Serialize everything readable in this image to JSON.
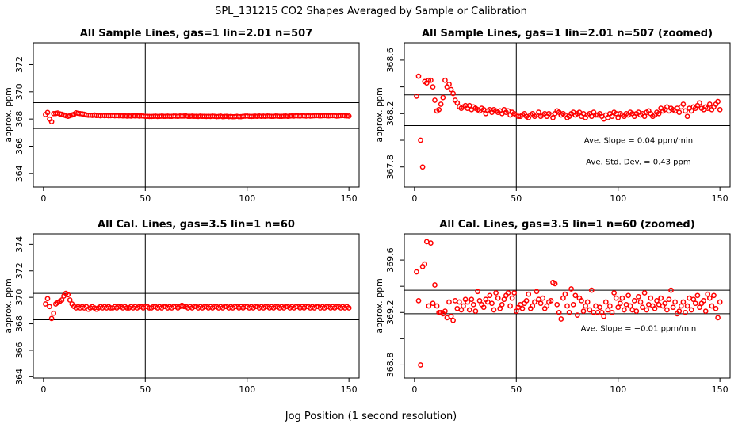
{
  "figure": {
    "title": "SPL_131215  CO2 Shapes Averaged by Sample or Calibration",
    "xlabel": "Jog Position (1 second resolution)"
  },
  "colors": {
    "points": "#ff0000",
    "lines": "#000000",
    "background": "#ffffff"
  },
  "chart_data": [
    {
      "id": "p1",
      "type": "scatter",
      "title": "All Sample Lines, gas=1 lin=2.01 n=507",
      "ylabel": "approx. ppm",
      "xlim": [
        -5,
        155
      ],
      "ylim": [
        363,
        373.6
      ],
      "xticks": [
        0,
        50,
        100,
        150
      ],
      "yticks": [
        364,
        366,
        368,
        370,
        372
      ],
      "hlines": [
        369.2,
        367.3
      ],
      "vlines": [
        50
      ],
      "grid": false,
      "annotations": [],
      "x": [
        1,
        2,
        3,
        4,
        5,
        6,
        7,
        8,
        9,
        10,
        11,
        12,
        13,
        14,
        15,
        16,
        17,
        18,
        19,
        20,
        21,
        22,
        23,
        24,
        25,
        26,
        27,
        28,
        29,
        30,
        31,
        32,
        33,
        34,
        35,
        36,
        37,
        38,
        39,
        40,
        41,
        42,
        43,
        44,
        45,
        46,
        47,
        48,
        49,
        50,
        51,
        52,
        53,
        54,
        55,
        56,
        57,
        58,
        59,
        60,
        61,
        62,
        63,
        64,
        65,
        66,
        67,
        68,
        69,
        70,
        71,
        72,
        73,
        74,
        75,
        76,
        77,
        78,
        79,
        80,
        81,
        82,
        83,
        84,
        85,
        86,
        87,
        88,
        89,
        90,
        91,
        92,
        93,
        94,
        95,
        96,
        97,
        98,
        99,
        100,
        101,
        102,
        103,
        104,
        105,
        106,
        107,
        108,
        109,
        110,
        111,
        112,
        113,
        114,
        115,
        116,
        117,
        118,
        119,
        120,
        121,
        122,
        123,
        124,
        125,
        126,
        127,
        128,
        129,
        130,
        131,
        132,
        133,
        134,
        135,
        136,
        137,
        138,
        139,
        140,
        141,
        142,
        143,
        144,
        145,
        146,
        147,
        148,
        149,
        150
      ],
      "y": [
        368.33,
        368.48,
        368.0,
        367.8,
        368.4,
        368.41,
        368.44,
        368.38,
        368.35,
        368.3,
        368.25,
        368.2,
        368.25,
        368.3,
        368.35,
        368.45,
        368.42,
        368.4,
        368.38,
        368.35,
        368.3,
        368.28,
        368.28,
        368.27,
        368.3,
        368.26,
        368.27,
        368.24,
        368.27,
        368.25,
        368.26,
        368.24,
        368.25,
        368.26,
        368.24,
        368.25,
        368.24,
        368.25,
        368.23,
        368.24,
        368.22,
        368.23,
        368.22,
        368.24,
        368.23,
        368.24,
        368.22,
        368.23,
        368.22,
        368.2,
        368.2,
        368.19,
        368.19,
        368.2,
        368.21,
        368.19,
        368.2,
        368.21,
        368.2,
        368.2,
        368.21,
        368.2,
        368.2,
        368.22,
        368.21,
        368.2,
        368.22,
        368.21,
        368.22,
        368.23,
        368.2,
        368.2,
        368.21,
        368.2,
        368.2,
        368.19,
        368.21,
        368.2,
        368.2,
        368.19,
        368.2,
        368.19,
        368.21,
        368.2,
        368.18,
        368.19,
        368.21,
        368.18,
        368.19,
        368.2,
        368.18,
        368.19,
        368.17,
        368.18,
        368.2,
        368.18,
        368.18,
        368.2,
        368.21,
        368.22,
        368.2,
        368.19,
        368.2,
        368.21,
        368.2,
        368.22,
        368.2,
        368.21,
        368.2,
        368.22,
        368.21,
        368.2,
        368.2,
        368.22,
        368.21,
        368.2,
        368.2,
        368.21,
        368.22,
        368.2,
        368.22,
        368.23,
        368.22,
        368.24,
        368.23,
        368.22,
        368.24,
        368.23,
        368.22,
        368.24,
        368.22,
        368.23,
        368.24,
        368.25,
        368.24,
        368.23,
        368.24,
        368.25,
        368.24,
        368.23,
        368.24,
        368.25,
        368.24,
        368.22,
        368.23,
        368.25,
        368.26,
        368.24,
        368.23,
        368.22
      ]
    },
    {
      "id": "p2",
      "type": "scatter",
      "title": "All Sample Lines, gas=1 lin=2.01 n=507 (zoomed)",
      "ylabel": "approx. ppm",
      "xlim": [
        -5,
        155
      ],
      "ylim": [
        367.65,
        368.73
      ],
      "xticks": [
        0,
        50,
        100,
        150
      ],
      "yticks": [
        367.8,
        368.0,
        368.2,
        368.4,
        368.6
      ],
      "yticklabels": [
        "367.8",
        "",
        "368.2",
        "",
        "368.6"
      ],
      "hlines": [
        368.34,
        368.11
      ],
      "vlines": [
        50
      ],
      "grid": false,
      "annotations": [
        {
          "text": "Ave. Slope =  0.04  ppm/min",
          "x": 110,
          "y": 367.98
        },
        {
          "text": "Ave. Std. Dev. =  0.43  ppm",
          "x": 110,
          "y": 367.82
        }
      ],
      "x": [
        1,
        2,
        3,
        4,
        5,
        6,
        7,
        8,
        9,
        10,
        11,
        12,
        13,
        14,
        15,
        16,
        17,
        18,
        19,
        20,
        21,
        22,
        23,
        24,
        25,
        26,
        27,
        28,
        29,
        30,
        31,
        32,
        33,
        34,
        35,
        36,
        37,
        38,
        39,
        40,
        41,
        42,
        43,
        44,
        45,
        46,
        47,
        48,
        49,
        50,
        51,
        52,
        53,
        54,
        55,
        56,
        57,
        58,
        59,
        60,
        61,
        62,
        63,
        64,
        65,
        66,
        67,
        68,
        69,
        70,
        71,
        72,
        73,
        74,
        75,
        76,
        77,
        78,
        79,
        80,
        81,
        82,
        83,
        84,
        85,
        86,
        87,
        88,
        89,
        90,
        91,
        92,
        93,
        94,
        95,
        96,
        97,
        98,
        99,
        100,
        101,
        102,
        103,
        104,
        105,
        106,
        107,
        108,
        109,
        110,
        111,
        112,
        113,
        114,
        115,
        116,
        117,
        118,
        119,
        120,
        121,
        122,
        123,
        124,
        125,
        126,
        127,
        128,
        129,
        130,
        131,
        132,
        133,
        134,
        135,
        136,
        137,
        138,
        139,
        140,
        141,
        142,
        143,
        144,
        145,
        146,
        147,
        148,
        149,
        150
      ],
      "y": [
        368.33,
        368.48,
        368.0,
        367.8,
        368.44,
        368.43,
        368.45,
        368.45,
        368.4,
        368.3,
        368.22,
        368.23,
        368.27,
        368.32,
        368.45,
        368.4,
        368.42,
        368.38,
        368.35,
        368.3,
        368.28,
        368.25,
        368.24,
        368.25,
        368.26,
        368.24,
        368.26,
        368.23,
        368.25,
        368.24,
        368.23,
        368.22,
        368.24,
        368.23,
        368.2,
        368.22,
        368.23,
        368.21,
        368.23,
        368.22,
        368.21,
        368.22,
        368.2,
        368.23,
        368.21,
        368.22,
        368.19,
        368.21,
        368.2,
        368.19,
        368.18,
        368.18,
        368.19,
        368.2,
        368.18,
        368.17,
        368.19,
        368.2,
        368.18,
        368.19,
        368.21,
        368.18,
        368.19,
        368.2,
        368.18,
        368.2,
        368.19,
        368.17,
        368.2,
        368.22,
        368.21,
        368.19,
        368.2,
        368.19,
        368.17,
        368.18,
        368.2,
        368.21,
        368.19,
        368.2,
        368.21,
        368.18,
        368.2,
        368.17,
        368.19,
        368.2,
        368.18,
        368.21,
        368.19,
        368.19,
        368.2,
        368.18,
        368.16,
        368.19,
        368.17,
        368.2,
        368.18,
        368.21,
        368.2,
        368.17,
        368.2,
        368.19,
        368.18,
        368.2,
        368.19,
        368.21,
        368.2,
        368.18,
        368.2,
        368.21,
        368.19,
        368.2,
        368.18,
        368.21,
        368.22,
        368.2,
        368.18,
        368.19,
        368.21,
        368.2,
        368.24,
        368.22,
        368.23,
        368.25,
        368.22,
        368.24,
        368.23,
        368.22,
        368.24,
        368.21,
        368.25,
        368.27,
        368.22,
        368.18,
        368.24,
        368.22,
        368.25,
        368.24,
        368.26,
        368.28,
        368.24,
        368.23,
        368.25,
        368.24,
        368.27,
        368.23,
        368.25,
        368.27,
        368.29,
        368.23
      ]
    },
    {
      "id": "p3",
      "type": "scatter",
      "title": "All Cal. Lines, gas=3.5 lin=1 n=60",
      "ylabel": "approx. ppm",
      "xlim": [
        -5,
        155
      ],
      "ylim": [
        363.9,
        374.8
      ],
      "xticks": [
        0,
        50,
        100,
        150
      ],
      "yticks": [
        364,
        366,
        368,
        370,
        372,
        374
      ],
      "hlines": [
        370.3,
        368.3
      ],
      "vlines": [
        50
      ],
      "grid": false,
      "annotations": [],
      "x": [
        1,
        2,
        3,
        4,
        5,
        6,
        7,
        8,
        9,
        10,
        11,
        12,
        13,
        14,
        15,
        16,
        17,
        18,
        19,
        20,
        21,
        22,
        23,
        24,
        25,
        26,
        27,
        28,
        29,
        30,
        31,
        32,
        33,
        34,
        35,
        36,
        37,
        38,
        39,
        40,
        41,
        42,
        43,
        44,
        45,
        46,
        47,
        48,
        49,
        50,
        51,
        52,
        53,
        54,
        55,
        56,
        57,
        58,
        59,
        60,
        61,
        62,
        63,
        64,
        65,
        66,
        67,
        68,
        69,
        70,
        71,
        72,
        73,
        74,
        75,
        76,
        77,
        78,
        79,
        80,
        81,
        82,
        83,
        84,
        85,
        86,
        87,
        88,
        89,
        90,
        91,
        92,
        93,
        94,
        95,
        96,
        97,
        98,
        99,
        100,
        101,
        102,
        103,
        104,
        105,
        106,
        107,
        108,
        109,
        110,
        111,
        112,
        113,
        114,
        115,
        116,
        117,
        118,
        119,
        120,
        121,
        122,
        123,
        124,
        125,
        126,
        127,
        128,
        129,
        130,
        131,
        132,
        133,
        134,
        135,
        136,
        137,
        138,
        139,
        140,
        141,
        142,
        143,
        144,
        145,
        146,
        147,
        148,
        149,
        150
      ],
      "y": [
        369.5,
        369.9,
        369.3,
        368.4,
        368.8,
        369.5,
        369.6,
        369.7,
        369.8,
        370.1,
        370.3,
        370.2,
        369.8,
        369.5,
        369.3,
        369.2,
        369.3,
        369.2,
        369.3,
        369.2,
        369.3,
        369.1,
        369.2,
        369.3,
        369.2,
        369.1,
        369.2,
        369.3,
        369.2,
        369.3,
        369.2,
        369.3,
        369.2,
        369.2,
        369.3,
        369.2,
        369.3,
        369.3,
        369.2,
        369.3,
        369.2,
        369.2,
        369.3,
        369.2,
        369.3,
        369.2,
        369.3,
        369.3,
        369.2,
        369.3,
        369.3,
        369.2,
        369.2,
        369.3,
        369.3,
        369.2,
        369.3,
        369.2,
        369.3,
        369.3,
        369.2,
        369.3,
        369.2,
        369.3,
        369.3,
        369.2,
        369.3,
        369.4,
        369.3,
        369.3,
        369.2,
        369.3,
        369.2,
        369.3,
        369.3,
        369.2,
        369.3,
        369.2,
        369.3,
        369.3,
        369.2,
        369.3,
        369.2,
        369.3,
        369.3,
        369.2,
        369.3,
        369.2,
        369.3,
        369.3,
        369.2,
        369.3,
        369.2,
        369.3,
        369.3,
        369.2,
        369.3,
        369.2,
        369.3,
        369.3,
        369.2,
        369.3,
        369.2,
        369.3,
        369.3,
        369.2,
        369.3,
        369.2,
        369.3,
        369.3,
        369.2,
        369.3,
        369.2,
        369.3,
        369.3,
        369.2,
        369.3,
        369.2,
        369.3,
        369.3,
        369.2,
        369.3,
        369.2,
        369.3,
        369.3,
        369.2,
        369.3,
        369.2,
        369.3,
        369.3,
        369.2,
        369.3,
        369.2,
        369.3,
        369.3,
        369.2,
        369.3,
        369.2,
        369.3,
        369.3,
        369.2,
        369.3,
        369.2,
        369.3,
        369.3,
        369.2,
        369.3,
        369.2,
        369.3,
        369.2
      ]
    },
    {
      "id": "p4",
      "type": "scatter",
      "title": "All Cal. Lines, gas=3.5 lin=1 n=60 (zoomed)",
      "ylabel": "approx. ppm",
      "xlim": [
        -5,
        155
      ],
      "ylim": [
        368.7,
        369.8
      ],
      "xticks": [
        0,
        50,
        100,
        150
      ],
      "yticks": [
        368.8,
        369.0,
        369.2,
        369.4,
        369.6
      ],
      "yticklabels": [
        "368.8",
        "",
        "369.2",
        "",
        "369.6"
      ],
      "hlines": [
        369.37,
        369.19
      ],
      "vlines": [
        50
      ],
      "grid": false,
      "annotations": [
        {
          "text": "Ave. Slope =  −0.01  ppm/min",
          "x": 110,
          "y": 369.06
        }
      ],
      "x": [
        1,
        2,
        3,
        4,
        5,
        6,
        7,
        8,
        9,
        10,
        11,
        12,
        13,
        14,
        15,
        16,
        17,
        18,
        19,
        20,
        21,
        22,
        23,
        24,
        25,
        26,
        27,
        28,
        29,
        30,
        31,
        32,
        33,
        34,
        35,
        36,
        37,
        38,
        39,
        40,
        41,
        42,
        43,
        44,
        45,
        46,
        47,
        48,
        49,
        50,
        51,
        52,
        53,
        54,
        55,
        56,
        57,
        58,
        59,
        60,
        61,
        62,
        63,
        64,
        65,
        66,
        67,
        68,
        69,
        70,
        71,
        72,
        73,
        74,
        75,
        76,
        77,
        78,
        79,
        80,
        81,
        82,
        83,
        84,
        85,
        86,
        87,
        88,
        89,
        90,
        91,
        92,
        93,
        94,
        95,
        96,
        97,
        98,
        99,
        100,
        101,
        102,
        103,
        104,
        105,
        106,
        107,
        108,
        109,
        110,
        111,
        112,
        113,
        114,
        115,
        116,
        117,
        118,
        119,
        120,
        121,
        122,
        123,
        124,
        125,
        126,
        127,
        128,
        129,
        130,
        131,
        132,
        133,
        134,
        135,
        136,
        137,
        138,
        139,
        140,
        141,
        142,
        143,
        144,
        145,
        146,
        147,
        148,
        149,
        150
      ],
      "y": [
        369.51,
        369.29,
        368.8,
        369.55,
        369.57,
        369.74,
        369.25,
        369.73,
        369.27,
        369.41,
        369.25,
        369.2,
        369.2,
        369.19,
        369.21,
        369.16,
        369.28,
        369.17,
        369.14,
        369.29,
        369.23,
        369.28,
        369.22,
        369.25,
        369.3,
        369.28,
        369.22,
        369.3,
        369.26,
        369.21,
        369.36,
        369.29,
        369.26,
        369.24,
        369.3,
        369.28,
        369.33,
        369.27,
        369.22,
        369.35,
        369.31,
        369.23,
        369.26,
        369.3,
        369.33,
        369.35,
        369.25,
        369.31,
        369.35,
        369.21,
        369.24,
        369.26,
        369.23,
        369.27,
        369.29,
        369.34,
        369.23,
        369.25,
        369.28,
        369.36,
        369.3,
        369.27,
        369.31,
        369.23,
        369.25,
        369.28,
        369.29,
        369.43,
        369.42,
        369.26,
        369.2,
        369.15,
        369.31,
        369.34,
        369.25,
        369.2,
        369.38,
        369.26,
        369.33,
        369.18,
        369.31,
        369.29,
        369.21,
        369.25,
        369.28,
        369.22,
        369.37,
        369.2,
        369.25,
        369.2,
        369.24,
        369.2,
        369.17,
        369.28,
        369.22,
        369.25,
        369.2,
        369.35,
        369.31,
        369.24,
        369.27,
        369.31,
        369.22,
        369.26,
        369.33,
        369.25,
        369.22,
        369.29,
        369.21,
        369.32,
        369.28,
        369.24,
        369.35,
        369.22,
        369.26,
        369.31,
        369.25,
        369.23,
        369.29,
        369.26,
        369.31,
        369.25,
        369.27,
        369.22,
        369.3,
        369.37,
        369.24,
        369.28,
        369.19,
        369.21,
        369.25,
        369.28,
        369.2,
        369.25,
        369.31,
        369.22,
        369.3,
        369.27,
        369.33,
        369.24,
        369.27,
        369.29,
        369.21,
        369.34,
        369.31,
        369.25,
        369.33,
        369.23,
        369.16,
        369.28
      ]
    }
  ]
}
